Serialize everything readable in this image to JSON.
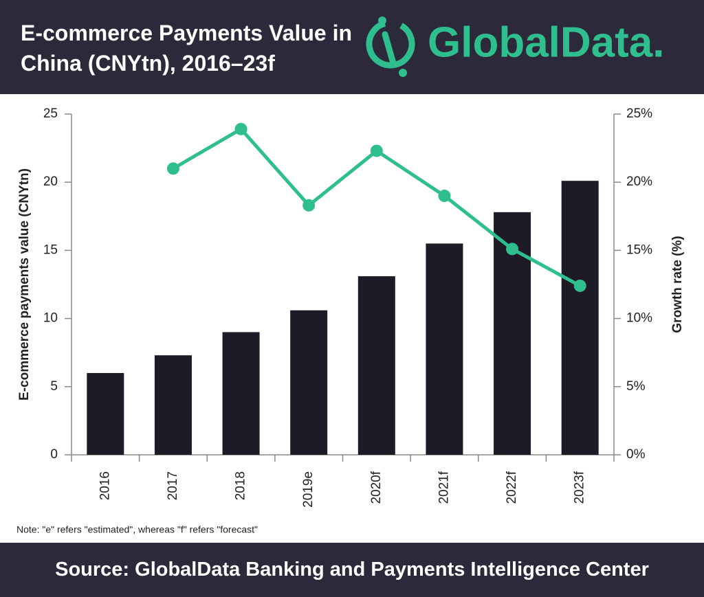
{
  "title": "E-commerce Payments Value in China (CNYtn), 2016–23f",
  "logo": "GlobalData.",
  "chart_data": {
    "type": "bar",
    "categories": [
      "2016",
      "2017",
      "2018",
      "2019e",
      "2020f",
      "2021f",
      "2022f",
      "2023f"
    ],
    "series": [
      {
        "type": "bar",
        "color": "#1e1a26",
        "values": [
          6.0,
          7.3,
          9.0,
          10.6,
          13.1,
          15.5,
          17.8,
          20.1
        ]
      },
      {
        "type": "line",
        "axis": "y2",
        "color": "#2fbf8e",
        "values": [
          null,
          21.0,
          23.9,
          18.3,
          22.3,
          19.0,
          15.1,
          12.4
        ]
      }
    ],
    "ylabel": "E-commerce payments value (CNYtn)",
    "y2label": "Growth rate (%)",
    "ylim": [
      0,
      25
    ],
    "yticks": [
      0,
      5,
      10,
      15,
      20,
      25
    ],
    "y2lim": [
      0,
      25
    ],
    "y2ticks": [
      {
        "value": 0,
        "label": "0%"
      },
      {
        "value": 5,
        "label": "5%"
      },
      {
        "value": 10,
        "label": "10%"
      },
      {
        "value": 15,
        "label": "15%"
      },
      {
        "value": 20,
        "label": "20%"
      },
      {
        "value": 25,
        "label": "25%"
      }
    ],
    "note": "Note: \"e\" refers \"estimated\", whereas \"f\" refers \"forecast\""
  },
  "source": "Source: GlobalData Banking and Payments Intelligence Center"
}
